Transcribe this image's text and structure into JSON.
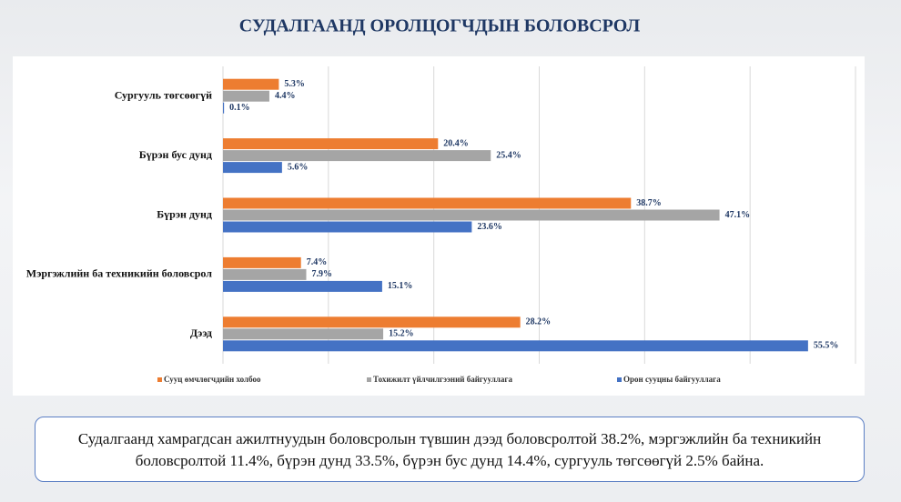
{
  "chart_data": {
    "type": "bar",
    "orientation": "horizontal",
    "title": "СУДАЛГААНД ОРОЛЦОГЧДЫН БОЛОВСРОЛ",
    "categories": [
      "Сургууль төгсөөгүй",
      "Бүрэн бус дунд",
      "Бүрэн дунд",
      "Мэргэжлийн ба техникийн боловсрол",
      "Дээд"
    ],
    "series": [
      {
        "name": "Сууц өмчлөгчдийн холбоо",
        "color": "#ed7d31",
        "values": [
          5.3,
          20.4,
          38.7,
          7.4,
          28.2
        ],
        "value_labels": [
          "5.3%",
          "20.4%",
          "38.7%",
          "7.4%",
          "28.2%"
        ]
      },
      {
        "name": "Тохижилт үйлчилгээний байгууллага",
        "color": "#a5a5a5",
        "values": [
          4.4,
          25.4,
          47.1,
          7.9,
          15.2
        ],
        "value_labels": [
          "4.4%",
          "25.4%",
          "47.1%",
          "7.9%",
          "15.2%"
        ]
      },
      {
        "name": "Орон сууцны байгууллага",
        "color": "#4472c4",
        "values": [
          0.1,
          5.6,
          23.6,
          15.1,
          55.5
        ],
        "value_labels": [
          "0.1%",
          "5.6%",
          "23.6%",
          "15.1%",
          "55.5%"
        ]
      }
    ],
    "xlim": [
      0,
      60
    ],
    "xticks": [
      0,
      10,
      20,
      30,
      40,
      50,
      60
    ],
    "grid": true,
    "legend": "bottom"
  },
  "caption": "Судалгаанд хамрагдсан ажилтнуудын боловсролын түвшин дээд боловсролтой 38.2%, мэргэжлийн ба техникийн боловсролтой 11.4%, бүрэн дунд 33.5%, бүрэн бус дунд 14.4%, сургууль төгсөөгүй 2.5% байна."
}
